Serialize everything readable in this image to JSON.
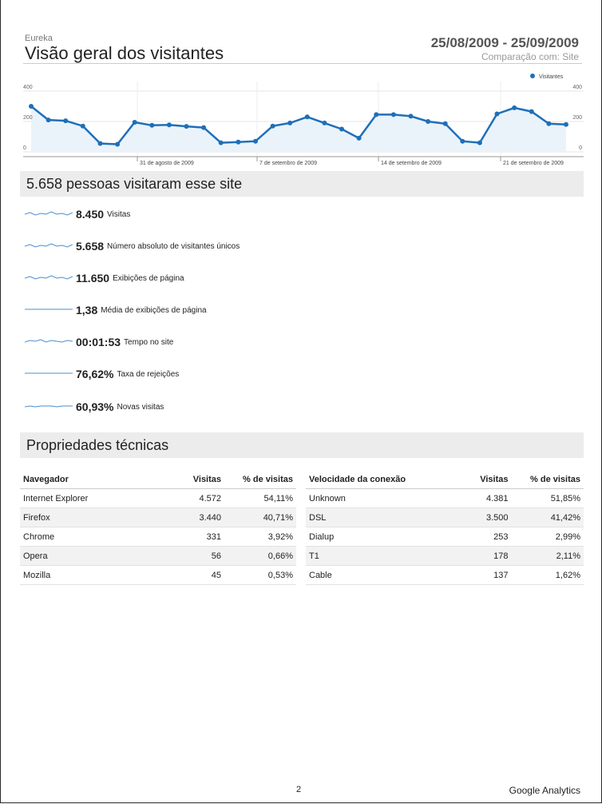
{
  "header": {
    "site": "Eureka",
    "title": "Visão geral dos visitantes",
    "date_range": "25/08/2009 - 25/09/2009",
    "comparison": "Comparação com: Site"
  },
  "chart_data": {
    "type": "line",
    "series": [
      {
        "name": "Visitantes",
        "values": [
          300,
          210,
          205,
          170,
          55,
          50,
          195,
          175,
          178,
          168,
          160,
          60,
          65,
          70,
          170,
          190,
          230,
          190,
          150,
          90,
          245,
          245,
          235,
          200,
          185,
          70,
          60,
          250,
          290,
          265,
          185,
          180
        ]
      }
    ],
    "y_ticks": [
      "400",
      "200",
      "0"
    ],
    "y_ticks_right": [
      "400",
      "200",
      "0"
    ],
    "ylim": [
      0,
      400
    ],
    "x_labels": [
      "31 de agosto de 2009",
      "7 de setembro de 2009",
      "14 de setembro de 2009",
      "21 de setembro de 2009"
    ],
    "legend": "top-right",
    "color": "#1f6fb8"
  },
  "summary": {
    "heading": "5.658 pessoas visitaram esse site",
    "metrics": [
      {
        "value": "8.450",
        "label": "Visitas"
      },
      {
        "value": "5.658",
        "label": "Número absoluto de visitantes únicos"
      },
      {
        "value": "11.650",
        "label": "Exibições de página"
      },
      {
        "value": "1,38",
        "label": "Média de exibições de página"
      },
      {
        "value": "00:01:53",
        "label": "Tempo no site"
      },
      {
        "value": "76,62%",
        "label": "Taxa de rejeições"
      },
      {
        "value": "60,93%",
        "label": "Novas visitas"
      }
    ]
  },
  "tech": {
    "heading": "Propriedades técnicas",
    "browser_table": {
      "headers": [
        "Navegador",
        "Visitas",
        "% de visitas"
      ],
      "rows": [
        [
          "Internet Explorer",
          "4.572",
          "54,11%"
        ],
        [
          "Firefox",
          "3.440",
          "40,71%"
        ],
        [
          "Chrome",
          "331",
          "3,92%"
        ],
        [
          "Opera",
          "56",
          "0,66%"
        ],
        [
          "Mozilla",
          "45",
          "0,53%"
        ]
      ]
    },
    "connection_table": {
      "headers": [
        "Velocidade da conexão",
        "Visitas",
        "% de visitas"
      ],
      "rows": [
        [
          "Unknown",
          "4.381",
          "51,85%"
        ],
        [
          "DSL",
          "3.500",
          "41,42%"
        ],
        [
          "Dialup",
          "253",
          "2,99%"
        ],
        [
          "T1",
          "178",
          "2,11%"
        ],
        [
          "Cable",
          "137",
          "1,62%"
        ]
      ]
    }
  },
  "footer": {
    "page_number": "2",
    "brand": "Google Analytics"
  }
}
